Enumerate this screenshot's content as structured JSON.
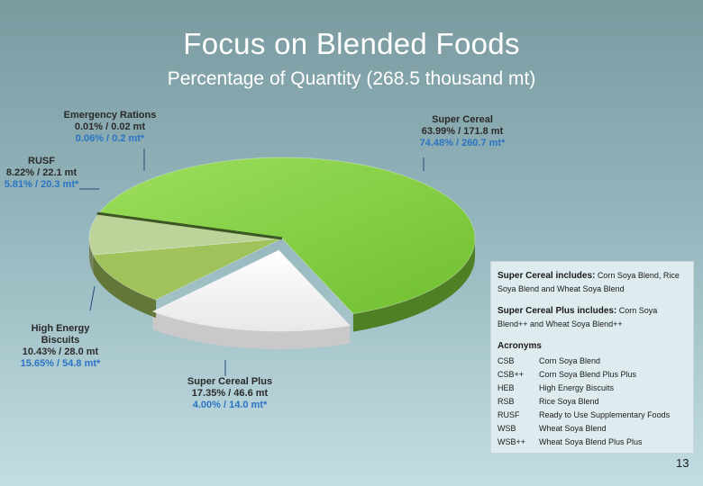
{
  "title": "Focus on Blended Foods",
  "subtitle": "Percentage of Quantity (268.5 thousand mt)",
  "labels": {
    "emergency": {
      "name": "Emergency Rations",
      "a": "0.01% / 0.02 mt",
      "b": "0.06% / 0.2 mt*"
    },
    "super_cereal": {
      "name": "Super Cereal",
      "a": "63.99% / 171.8 mt",
      "b": "74.48% / 260.7 mt*"
    },
    "rusf": {
      "name": "RUSF",
      "a": "8.22% / 22.1 mt",
      "b": "5.81% / 20.3 mt*"
    },
    "heb": {
      "name1": "High Energy",
      "name2": "Biscuits",
      "a": "10.43% / 28.0 mt",
      "b": "15.65% / 54.8 mt*"
    },
    "scp": {
      "name": "Super Cereal Plus",
      "a": "17.35% / 46.6 mt",
      "b": "4.00% / 14.0 mt*"
    }
  },
  "info": {
    "sc_head": "Super Cereal includes:",
    "sc_text": "Corn Soya Blend, Rice Soya Blend and Wheat Soya Blend",
    "scp_head": "Super Cereal Plus includes:",
    "scp_text": "Corn Soya Blend++ and Wheat Soya Blend++",
    "acronyms_title": "Acronyms",
    "acronyms": [
      {
        "k": "CSB",
        "v": "Corn Soya Blend"
      },
      {
        "k": "CSB++",
        "v": "Corn Soya Blend Plus Plus"
      },
      {
        "k": "HEB",
        "v": "High Energy Biscuits"
      },
      {
        "k": "RSB",
        "v": "Rice Soya Blend"
      },
      {
        "k": "RUSF",
        "v": "Ready to Use Supplementary Foods"
      },
      {
        "k": "WSB",
        "v": "Wheat Soya Blend"
      },
      {
        "k": "WSB++",
        "v": "Wheat Soya Blend Plus Plus"
      }
    ]
  },
  "page_number": "13",
  "colors": {
    "super_cereal": "#7fcf3e",
    "super_cereal_plus": "#f4f4f4",
    "heb": "#9fc25a",
    "rusf": "#bcd39a",
    "emergency": "#4b6a2c"
  },
  "chart_data": {
    "type": "pie",
    "title": "Focus on Blended Foods",
    "subtitle": "Percentage of Quantity (268.5 thousand mt)",
    "series": [
      {
        "name": "Super Cereal",
        "percent": 63.99,
        "quantity_mt": 171.8,
        "percent_star": 74.48,
        "quantity_mt_star": 260.7
      },
      {
        "name": "Super Cereal Plus",
        "percent": 17.35,
        "quantity_mt": 46.6,
        "percent_star": 4.0,
        "quantity_mt_star": 14.0
      },
      {
        "name": "High Energy Biscuits",
        "percent": 10.43,
        "quantity_mt": 28.0,
        "percent_star": 15.65,
        "quantity_mt_star": 54.8
      },
      {
        "name": "RUSF",
        "percent": 8.22,
        "quantity_mt": 22.1,
        "percent_star": 5.81,
        "quantity_mt_star": 20.3
      },
      {
        "name": "Emergency Rations",
        "percent": 0.01,
        "quantity_mt": 0.02,
        "percent_star": 0.06,
        "quantity_mt_star": 0.2
      }
    ],
    "exploded": [
      "Super Cereal Plus"
    ],
    "style": "3d"
  }
}
